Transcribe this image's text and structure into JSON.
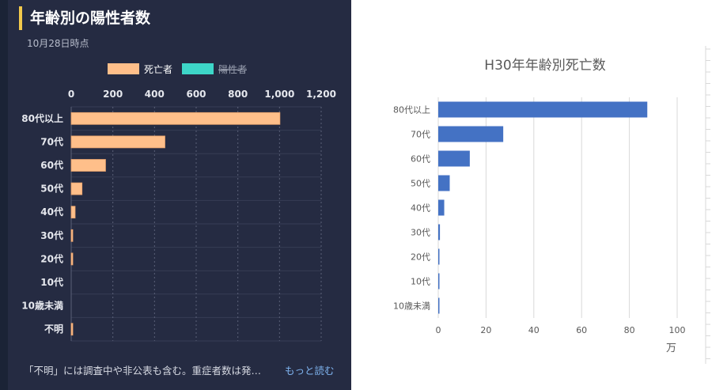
{
  "left_panel": {
    "title": "年齢別の陽性者数",
    "subtitle": "10月28日時点",
    "legend": [
      {
        "label": "死亡者",
        "color": "#ffbf8a",
        "active": true
      },
      {
        "label": "陽性者",
        "color": "#3dd6c8",
        "active": false
      }
    ],
    "footnote": "「不明」には調査中や非公表も含む。重症者数は発…",
    "more_link": "もっと読む"
  },
  "right_panel": {
    "title": "H30年年齢別死亡数",
    "unit_label": "万"
  },
  "chart_data": [
    {
      "type": "bar",
      "orientation": "horizontal",
      "categories": [
        "80代以上",
        "70代",
        "60代",
        "50代",
        "40代",
        "30代",
        "20代",
        "10代",
        "10歳未満",
        "不明"
      ],
      "series": [
        {
          "name": "死亡者",
          "values": [
            1002,
            450,
            165,
            52,
            19,
            4,
            1,
            0,
            0,
            4
          ]
        }
      ],
      "xlim": [
        0,
        1200
      ],
      "xticks": [
        "0",
        "200",
        "400",
        "600",
        "800",
        "1,000",
        "1,200"
      ],
      "grid": true,
      "legend_position": "top"
    },
    {
      "type": "bar",
      "orientation": "horizontal",
      "title": "H30年年齢別死亡数",
      "categories": [
        "80代以上",
        "70代",
        "60代",
        "50代",
        "40代",
        "30代",
        "20代",
        "10代",
        "10歳未満"
      ],
      "series": [
        {
          "values": [
            87.5,
            27.2,
            13.2,
            4.8,
            2.5,
            0.7,
            0.3,
            0.2,
            0.3
          ]
        }
      ],
      "xlim": [
        0,
        100
      ],
      "xticks": [
        "0",
        "20",
        "40",
        "60",
        "80",
        "100"
      ],
      "xlabel": "万",
      "grid": true
    }
  ]
}
